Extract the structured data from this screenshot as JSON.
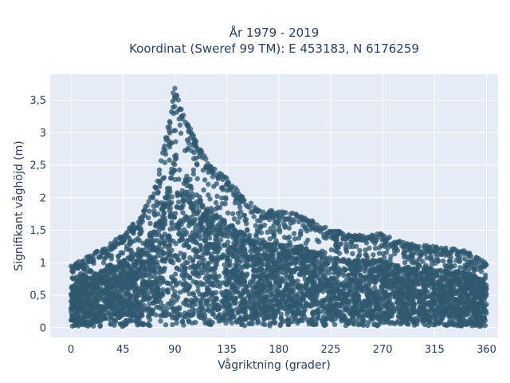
{
  "chart_data": {
    "type": "scatter",
    "title": "År 1979 - 2019",
    "subtitle": "Koordinat (Sweref 99 TM): E 453183, N 6176259",
    "xlabel": "Vågriktning (grader)",
    "ylabel": "Signifikant våghöjd (m)",
    "xlim": [
      -18,
      370
    ],
    "ylim": [
      -0.15,
      3.9
    ],
    "x_ticks": [
      0,
      45,
      90,
      135,
      180,
      225,
      270,
      315,
      360
    ],
    "x_tick_labels": [
      "0",
      "45",
      "90",
      "135",
      "180",
      "225",
      "270",
      "315",
      "360"
    ],
    "y_ticks": [
      0,
      0.5,
      1,
      1.5,
      2,
      2.5,
      3,
      3.5
    ],
    "y_tick_labels": [
      "0",
      "0,5",
      "1",
      "1,5",
      "2",
      "2,5",
      "3",
      "3,5"
    ],
    "grid": true,
    "legend": "none",
    "marker_color": "#2f5870",
    "plot_background": "#e5ecf6",
    "series": [
      {
        "envelope_x": [
          0,
          15,
          30,
          45,
          60,
          75,
          85,
          90,
          95,
          105,
          120,
          135,
          150,
          165,
          180,
          200,
          225,
          250,
          270,
          290,
          315,
          340,
          360
        ],
        "envelope_max_y": [
          0.95,
          1.1,
          1.25,
          1.45,
          1.7,
          2.3,
          3.2,
          3.8,
          3.4,
          3.0,
          2.5,
          2.3,
          2.0,
          1.8,
          1.8,
          1.75,
          1.5,
          1.45,
          1.45,
          1.3,
          1.25,
          1.2,
          1.0
        ],
        "envelope_min_y": [
          0.02,
          0.02,
          0.02,
          0.02,
          0.03,
          0.03,
          0.03,
          0.03,
          0.03,
          0.03,
          0.03,
          0.03,
          0.03,
          0.03,
          0.03,
          0.03,
          0.03,
          0.03,
          0.03,
          0.03,
          0.03,
          0.03,
          0.02
        ]
      }
    ]
  }
}
